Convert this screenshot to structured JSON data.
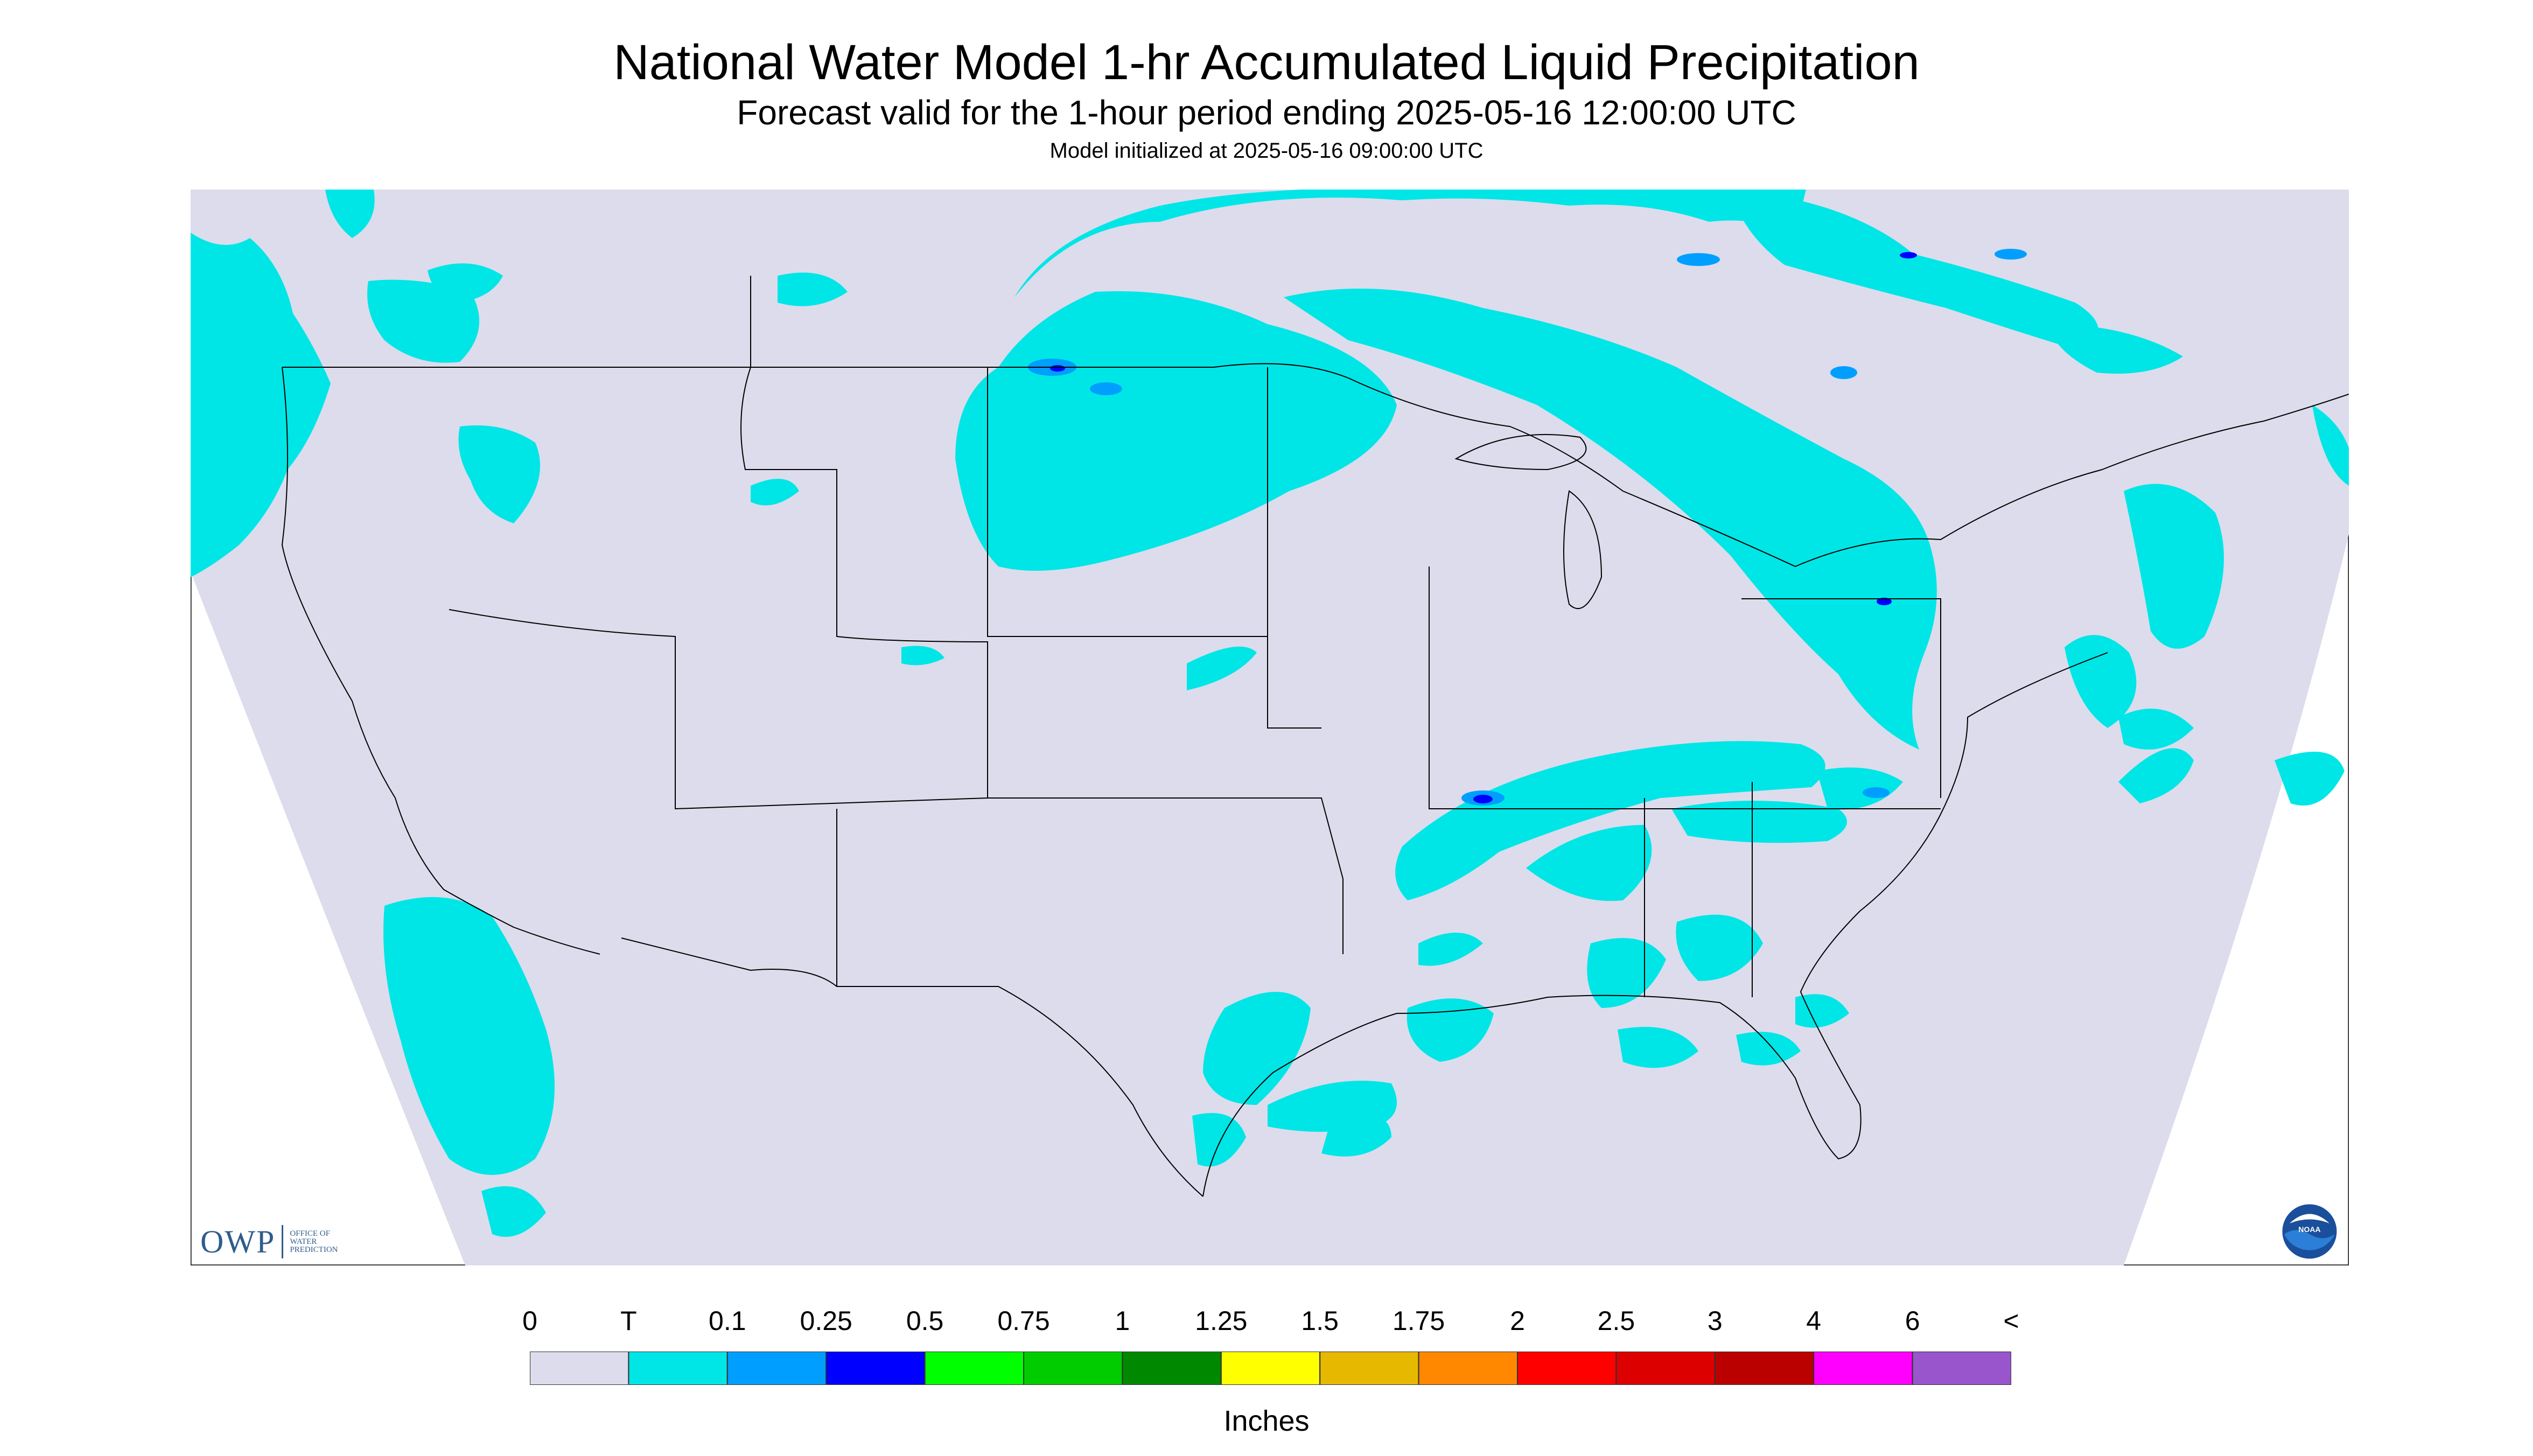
{
  "title": "National Water Model 1-hr Accumulated Liquid Precipitation",
  "subtitle": "Forecast valid for the 1-hour period ending 2025-05-16 12:00:00 UTC",
  "init_line": "Model initialized at 2025-05-16 09:00:00 UTC",
  "legend": {
    "units": "Inches",
    "ticks": [
      "0",
      "T",
      "0.1",
      "0.25",
      "0.5",
      "0.75",
      "1",
      "1.25",
      "1.5",
      "1.75",
      "2",
      "2.5",
      "3",
      "4",
      "6",
      "<"
    ],
    "colors": [
      "#dcdcec",
      "#00e6e6",
      "#009fff",
      "#0000ff",
      "#00ff00",
      "#00cc00",
      "#008800",
      "#ffff00",
      "#e6b800",
      "#ff8800",
      "#ff0000",
      "#dd0000",
      "#bb0000",
      "#ff00ff",
      "#9955cc"
    ]
  },
  "logos": {
    "owp_text": "OWP",
    "owp_subtext": [
      "OFFICE OF",
      "WATER",
      "PREDICTION"
    ],
    "noaa_text": "NOAA"
  },
  "colors": {
    "background": "#dcdcec",
    "precip_trace": "#00e6e6",
    "precip_light": "#009fff",
    "precip_mod": "#0000ff",
    "boundaries": "#000000"
  }
}
